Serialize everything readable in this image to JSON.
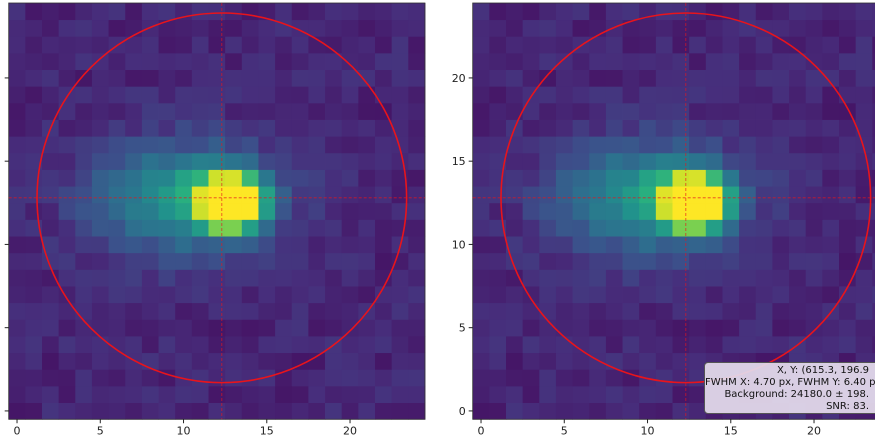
{
  "chart_data": [
    {
      "type": "heatmap",
      "colormap": "viridis",
      "xlim": [
        -0.5,
        24.5
      ],
      "ylim": [
        -0.5,
        24.5
      ],
      "xticks": [
        "0",
        "5",
        "10",
        "15",
        "20"
      ],
      "yticks": [
        "0",
        "5",
        "10",
        "15",
        "20"
      ],
      "ytick_labels_visible": false,
      "aperture": {
        "center": [
          12.3,
          12.8
        ],
        "radius": 11.1,
        "color": "#e8141c"
      },
      "crosshair": {
        "x": 12.3,
        "y": 12.8,
        "color": "#e8141c"
      }
    },
    {
      "type": "heatmap",
      "colormap": "viridis",
      "xlim": [
        -0.5,
        24.5
      ],
      "ylim": [
        -0.5,
        24.5
      ],
      "xticks": [
        "0",
        "5",
        "10",
        "15",
        "20"
      ],
      "yticks": [
        "0",
        "5",
        "10",
        "15",
        "20"
      ],
      "aperture": {
        "center": [
          12.3,
          12.8
        ],
        "radius": 11.1,
        "color": "#e8141c"
      },
      "crosshair": {
        "x": 12.3,
        "y": 12.8,
        "color": "#e8141c"
      },
      "annotation": {
        "lines": [
          "X, Y: (615.3, 196.9",
          "FWHM X: 4.70 px, FWHM Y: 6.40 p",
          "Background: 24180.0 ± 198.",
          "SNR: 83."
        ]
      }
    }
  ]
}
